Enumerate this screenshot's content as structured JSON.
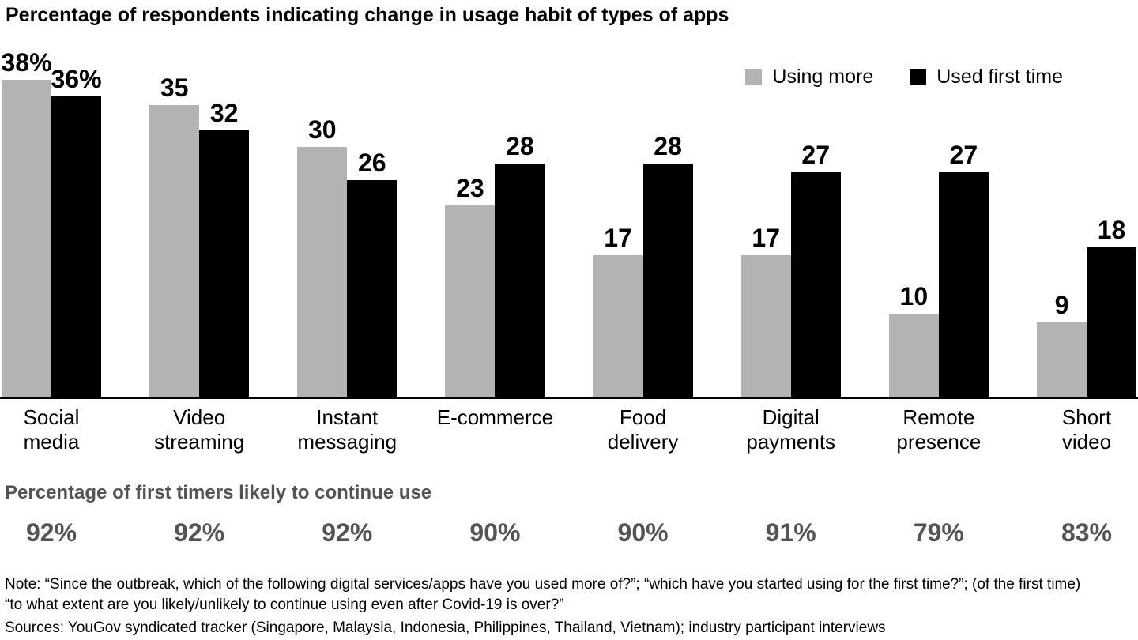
{
  "title": "Percentage of respondents indicating change in usage habit of types of apps",
  "legend": [
    {
      "label": "Using more",
      "color": "#b3b3b3"
    },
    {
      "label": "Used first time",
      "color": "#000000"
    }
  ],
  "chart_data": {
    "type": "bar",
    "title": "Percentage of respondents indicating change in usage habit of types of apps",
    "categories": [
      "Social\nmedia",
      "Video\nstreaming",
      "Instant\nmessaging",
      "E-commerce",
      "Food\ndelivery",
      "Digital\npayments",
      "Remote\npresence",
      "Short\nvideo"
    ],
    "series": [
      {
        "name": "Using more",
        "values": [
          38,
          35,
          30,
          23,
          17,
          17,
          10,
          9
        ]
      },
      {
        "name": "Used first time",
        "values": [
          36,
          32,
          26,
          28,
          28,
          27,
          27,
          18
        ]
      }
    ],
    "value_labels": [
      [
        "38%",
        "35",
        "30",
        "23",
        "17",
        "17",
        "10",
        "9"
      ],
      [
        "36%",
        "32",
        "26",
        "28",
        "28",
        "27",
        "27",
        "18"
      ]
    ],
    "ylim": [
      0,
      40
    ],
    "grid": false,
    "legend_position": "top-right",
    "xlabel": "",
    "ylabel": ""
  },
  "continue_use": {
    "heading": "Percentage of first timers likely to continue use",
    "values": [
      "92%",
      "92%",
      "92%",
      "90%",
      "90%",
      "91%",
      "79%",
      "83%"
    ]
  },
  "footnote": {
    "note": "Note: “Since the outbreak, which of the following digital services/apps have you used more of?”; “which have you started using for the first time?”; (of the first time)\n“to what extent are you likely/unlikely to continue using even after Covid-19 is over?”",
    "sources": "Sources: YouGov syndicated tracker (Singapore, Malaysia, Indonesia, Philippines, Thailand, Vietnam); industry participant interviews"
  }
}
